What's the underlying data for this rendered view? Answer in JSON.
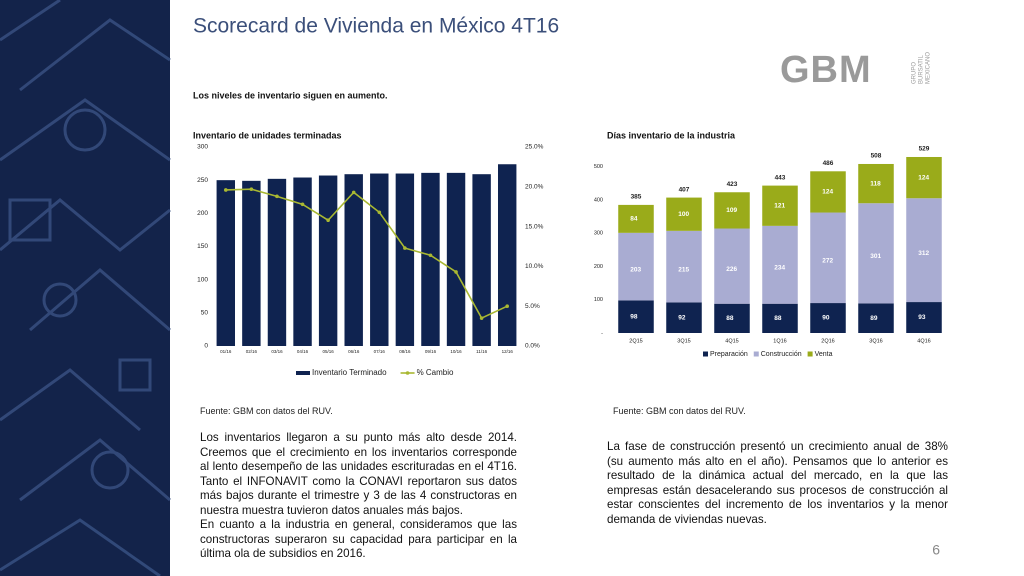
{
  "title": "Scorecard de Vivienda en México 4T16",
  "logo": {
    "name": "GBM",
    "sub": [
      "GRUPO",
      "BURSATIL",
      "MEXICANO"
    ]
  },
  "subtitle": "Los niveles de inventario siguen en aumento.",
  "chart_data": [
    {
      "type": "bar",
      "title": "Inventario de unidades terminadas",
      "categories": [
        "01/16",
        "02/16",
        "03/16",
        "04/16",
        "05/16",
        "06/16",
        "07/16",
        "08/16",
        "09/16",
        "10/16",
        "11/16",
        "12/16"
      ],
      "series": [
        {
          "name": "Inventario Terminado",
          "color": "#0f2350",
          "type": "bar",
          "values": [
            250,
            249,
            252,
            254,
            257,
            259,
            260,
            260,
            261,
            261,
            259,
            274
          ]
        },
        {
          "name": "% Cambio",
          "color": "#a9b832",
          "type": "line",
          "axis": "y2",
          "values": [
            19.6,
            19.7,
            18.8,
            17.8,
            15.8,
            19.3,
            16.8,
            12.3,
            11.4,
            9.3,
            3.5,
            5.0
          ]
        }
      ],
      "ylim": [
        0,
        300
      ],
      "yticks": [
        0,
        50,
        100,
        150,
        200,
        250,
        300
      ],
      "y2lim": [
        0,
        25
      ],
      "y2ticks": [
        {
          "value": 0,
          "label": "0.0%"
        },
        {
          "value": 5,
          "label": "5.0%"
        },
        {
          "value": 10,
          "label": "10.0%"
        },
        {
          "value": 15,
          "label": "15.0%"
        },
        {
          "value": 20,
          "label": "20.0%"
        },
        {
          "value": 25,
          "label": "25.0%"
        }
      ],
      "legend": "bottom",
      "grid": false
    },
    {
      "type": "stacked_bar",
      "title": "Días inventario de la industria",
      "categories": [
        "2Q15",
        "3Q15",
        "4Q15",
        "1Q16",
        "2Q16",
        "3Q16",
        "4Q16"
      ],
      "series": [
        {
          "name": "Preparación",
          "color": "#0f2350",
          "values": [
            98,
            92,
            88,
            88,
            90,
            89,
            93
          ]
        },
        {
          "name": "Construcción",
          "color": "#a9acd2",
          "values": [
            203,
            215,
            226,
            234,
            272,
            301,
            312
          ]
        },
        {
          "name": "Venta",
          "color": "#9aab1a",
          "values": [
            84,
            100,
            109,
            121,
            124,
            118,
            124
          ]
        }
      ],
      "totals": [
        385,
        407,
        423,
        443,
        486,
        508,
        529
      ],
      "ylim": [
        0,
        550
      ],
      "yticks": [
        {
          "value": 0,
          "label": "-"
        },
        100,
        200,
        300,
        400,
        500
      ],
      "legend": "bottom",
      "grid": false
    }
  ],
  "sources": [
    "Fuente: GBM con datos del RUV.",
    "Fuente: GBM con datos del RUV."
  ],
  "left_text": [
    "Los inventarios llegaron a su punto más alto desde 2014. Creemos que el crecimiento en los inventarios corresponde al lento desempeño de las unidades escrituradas en el 4T16. Tanto el INFONAVIT como la CONAVI reportaron sus datos más bajos durante el trimestre y 3 de las 4 constructoras en nuestra muestra tuvieron datos anuales más bajos.",
    "En cuanto a la industria en general, consideramos que las constructoras superaron su capacidad para participar en la última ola de subsidios en 2016."
  ],
  "right_text": "La fase de construcción presentó un crecimiento anual de 38% (su aumento más alto en el año). Pensamos que lo anterior es resultado de la dinámica actual del mercado, en la que las empresas están desacelerando sus procesos de construcción al estar conscientes del incremento de los inventarios y la menor demanda de viviendas nuevas.",
  "page_number": "6"
}
